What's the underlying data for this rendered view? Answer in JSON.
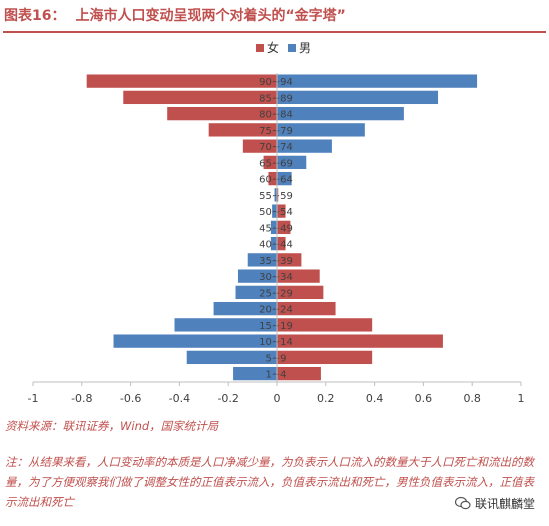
{
  "figure": {
    "number": "图表16：",
    "title": "上海市人口变动呈现两个对着头的“金字塔”"
  },
  "chart_data": {
    "type": "bar",
    "orientation": "horizontal",
    "categories": [
      "1~4",
      "5~9",
      "10~14",
      "15~19",
      "20~24",
      "25~29",
      "30~34",
      "35~39",
      "40~44",
      "45~49",
      "50~54",
      "55~59",
      "60~64",
      "65~69",
      "70~74",
      "75~79",
      "80~84",
      "85~89",
      "90~94"
    ],
    "series": [
      {
        "name": "女",
        "color": "#c0504d",
        "values": [
          0.18,
          0.39,
          0.68,
          0.39,
          0.24,
          0.19,
          0.175,
          0.1,
          0.035,
          0.055,
          0.035,
          0.005,
          -0.035,
          -0.055,
          -0.14,
          -0.28,
          -0.45,
          -0.63,
          -0.78
        ]
      },
      {
        "name": "男",
        "color": "#4f81bd",
        "values": [
          -0.18,
          -0.37,
          -0.67,
          -0.42,
          -0.26,
          -0.17,
          -0.16,
          -0.12,
          -0.025,
          -0.025,
          -0.02,
          -0.01,
          0.06,
          0.12,
          0.225,
          0.36,
          0.52,
          0.66,
          0.82
        ]
      }
    ],
    "x_ticks": [
      "-1",
      "-0.8",
      "-0.6",
      "-0.4",
      "-0.2",
      "0",
      "0.2",
      "0.4",
      "0.6",
      "0.8",
      "1"
    ],
    "xlim": [
      -1,
      1
    ],
    "legend_position": "top-center",
    "grid": false
  },
  "source": "资料来源：联讯证券，Wind，国家统计局",
  "note": "注：从结果来看，人口变动率的本质是人口净减少量，为负表示人口流入的数量大于人口死亡和流出的数量，为了方便观察我们做了调整女性的正值表示流入，负值表示流出和死亡，男性负值表示流入，正值表示流出和死亡",
  "watermark": "联讯麒麟堂"
}
